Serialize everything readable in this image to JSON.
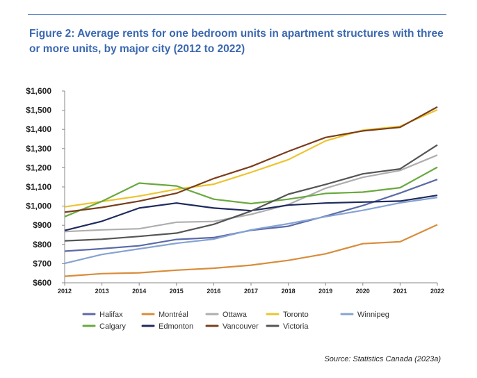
{
  "figure": {
    "title": "Figure 2: Average rents for one bedroom units in apartment structures with three or more units, by major city (2012 to 2022)",
    "source": "Source: Statistics Canada (2023a)"
  },
  "chart_data": {
    "type": "line",
    "title": "Figure 2: Average rents for one bedroom units in apartment structures with three or more units, by major city (2012 to 2022)",
    "xlabel": "",
    "ylabel": "",
    "x": [
      "2012",
      "2013",
      "2014",
      "2015",
      "2016",
      "2017",
      "2018",
      "2019",
      "2020",
      "2021",
      "2022"
    ],
    "ylim": [
      600,
      1600
    ],
    "yticks": [
      "$600",
      "$700",
      "$800",
      "$900",
      "$1,000",
      "$1,100",
      "$1,200",
      "$1,300",
      "$1,400",
      "$1,500",
      "$1,600"
    ],
    "grid": false,
    "legend_position": "bottom",
    "series": [
      {
        "name": "Halifax",
        "color": "#5b6aa8",
        "values": [
          765,
          778,
          793,
          826,
          836,
          874,
          895,
          948,
          1003,
          1068,
          1139
        ]
      },
      {
        "name": "Montréal",
        "color": "#d98c3a",
        "values": [
          634,
          648,
          652,
          666,
          676,
          692,
          717,
          751,
          804,
          814,
          903
        ]
      },
      {
        "name": "Ottawa",
        "color": "#aeaeae",
        "values": [
          867,
          876,
          882,
          916,
          920,
          957,
          1008,
          1093,
          1150,
          1186,
          1266
        ]
      },
      {
        "name": "Toronto",
        "color": "#ecc42e",
        "values": [
          996,
          1024,
          1052,
          1088,
          1114,
          1176,
          1242,
          1340,
          1396,
          1416,
          1502
        ]
      },
      {
        "name": "Winnipeg",
        "color": "#86a3d2",
        "values": [
          701,
          748,
          777,
          806,
          828,
          876,
          908,
          945,
          978,
          1017,
          1045
        ]
      },
      {
        "name": "Calgary",
        "color": "#69a93f",
        "values": [
          945,
          1025,
          1120,
          1105,
          1036,
          1013,
          1036,
          1066,
          1073,
          1096,
          1203
        ]
      },
      {
        "name": "Edmonton",
        "color": "#1f2a5e",
        "values": [
          873,
          921,
          990,
          1016,
          990,
          976,
          1005,
          1016,
          1021,
          1026,
          1056
        ]
      },
      {
        "name": "Vancouver",
        "color": "#7a3e1c",
        "values": [
          968,
          993,
          1026,
          1067,
          1144,
          1206,
          1285,
          1358,
          1392,
          1411,
          1517
        ]
      },
      {
        "name": "Victoria",
        "color": "#555555",
        "values": [
          819,
          827,
          842,
          859,
          905,
          974,
          1062,
          1113,
          1168,
          1194,
          1319
        ]
      }
    ]
  }
}
